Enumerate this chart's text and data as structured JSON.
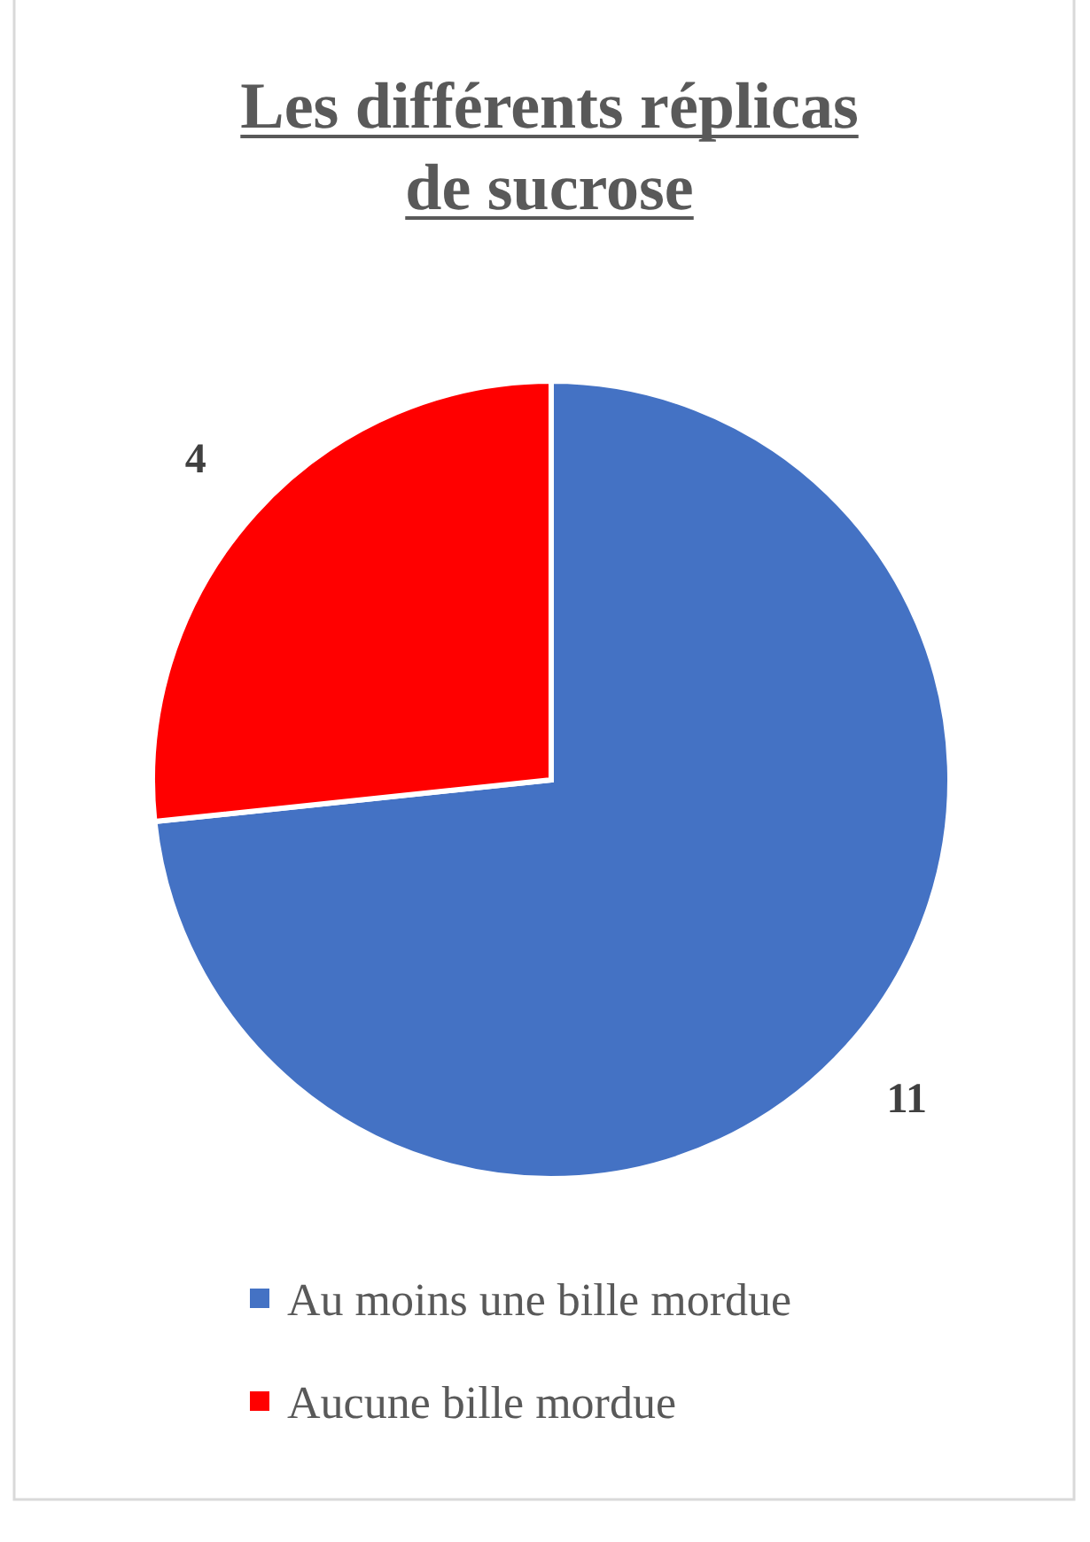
{
  "chart_data": {
    "type": "pie",
    "title": "Les différents réplicas de sucrose",
    "categories": [
      "Au moins une bille mordue",
      "Aucune bille mordue"
    ],
    "values": [
      11,
      4
    ],
    "colors": [
      "#4472c4",
      "#ff0000"
    ],
    "data_labels": true,
    "legend": "bottom"
  }
}
